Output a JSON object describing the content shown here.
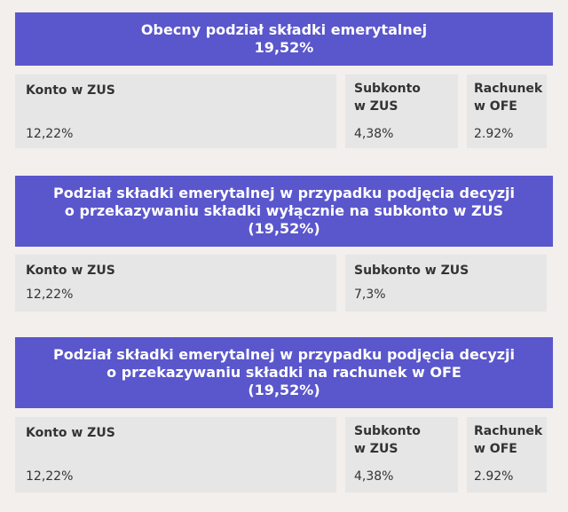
{
  "section1": {
    "title_line1": "Obecny podział składki emerytalnej",
    "title_line2": "19,52%",
    "konto_label": "Konto w ZUS",
    "konto_value": "12,22%",
    "subkonto_label_line1": "Subkonto",
    "subkonto_label_line2": "w ZUS",
    "subkonto_value": "4,38%",
    "ofe_label_line1": "Rachunek",
    "ofe_label_line2": "w OFE",
    "ofe_value": "2.92%"
  },
  "section2": {
    "title_line1": "Podział składki emerytalnej w przypadku podjęcia decyzji",
    "title_line2": "o przekazywaniu składki wyłącznie na subkonto w ZUS",
    "title_line3": "(19,52%)",
    "konto_label": "Konto w ZUS",
    "konto_value": "12,22%",
    "subkonto_label": "Subkonto w ZUS",
    "subkonto_value": "7,3%"
  },
  "section3": {
    "title_line1": "Podział składki emerytalnej w przypadku podjęcia decyzji",
    "title_line2": "o przekazywaniu składki na rachunek w OFE",
    "title_line3": "(19,52%)",
    "konto_label": "Konto w ZUS",
    "konto_value": "12,22%",
    "subkonto_label_line1": "Subkonto",
    "subkonto_label_line2": "w ZUS",
    "subkonto_value": "4,38%",
    "ofe_label_line1": "Rachunek",
    "ofe_label_line2": "w OFE",
    "ofe_value": "2.92%"
  }
}
